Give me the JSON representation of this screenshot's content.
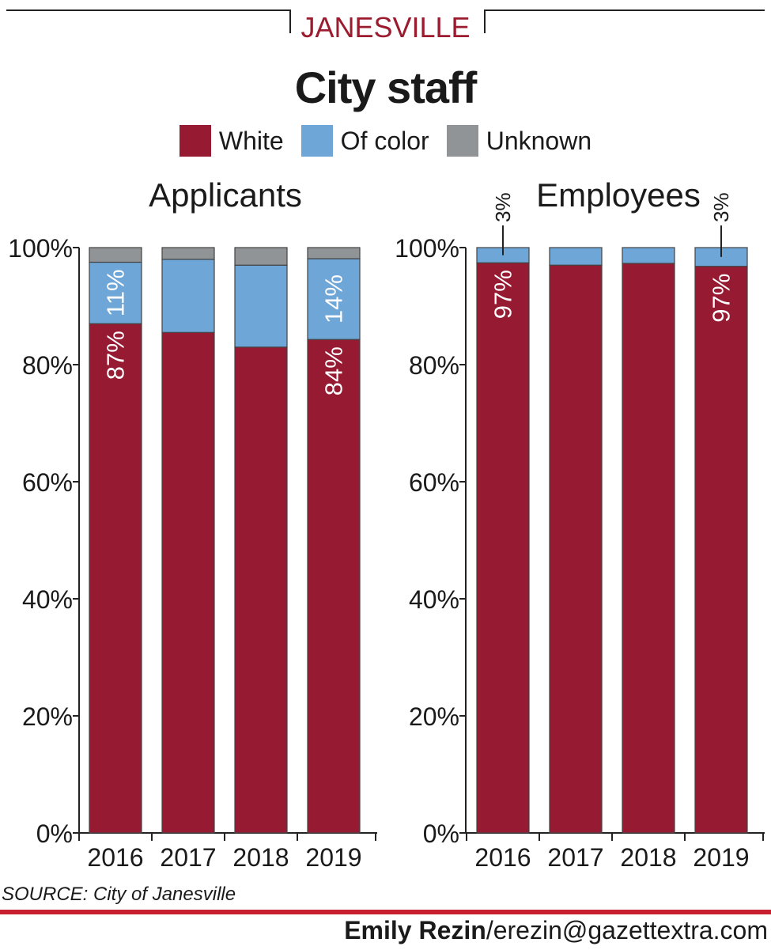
{
  "kicker": "JANESVILLE",
  "title": "City staff",
  "legend": [
    {
      "label": "White",
      "color": "#961a31"
    },
    {
      "label": "Of color",
      "color": "#6fa6d8"
    },
    {
      "label": "Unknown",
      "color": "#919496"
    }
  ],
  "source": "SOURCE: City of Janesville",
  "credit": {
    "name": "Emily Rezin",
    "email": "/erezin@gazettextra.com"
  },
  "colors": {
    "accent": "#c8202f",
    "white": "#961a31",
    "of_color": "#6fa6d8",
    "unknown": "#919496"
  },
  "chart_data": [
    {
      "type": "bar",
      "stacked": true,
      "title": "Applicants",
      "categories": [
        "2016",
        "2017",
        "2018",
        "2019"
      ],
      "ylim": [
        0,
        100
      ],
      "yticks": [
        "0%",
        "20%",
        "40%",
        "60%",
        "80%",
        "100%"
      ],
      "series": [
        {
          "name": "White",
          "values": [
            87,
            85.5,
            83,
            84.3
          ]
        },
        {
          "name": "Of color",
          "values": [
            10.5,
            12.5,
            14,
            13.8
          ]
        },
        {
          "name": "Unknown",
          "values": [
            2.5,
            2,
            3,
            1.9
          ]
        }
      ],
      "labels": [
        {
          "category": "2016",
          "series": "White",
          "text": "87%"
        },
        {
          "category": "2016",
          "series": "Of color",
          "text": "11%"
        },
        {
          "category": "2019",
          "series": "White",
          "text": "84%"
        },
        {
          "category": "2019",
          "series": "Of color",
          "text": "14%"
        }
      ]
    },
    {
      "type": "bar",
      "stacked": true,
      "title": "Employees",
      "categories": [
        "2016",
        "2017",
        "2018",
        "2019"
      ],
      "ylim": [
        0,
        100
      ],
      "yticks": [
        "0%",
        "20%",
        "40%",
        "60%",
        "80%",
        "100%"
      ],
      "series": [
        {
          "name": "White",
          "values": [
            97.4,
            97,
            97.3,
            96.8
          ]
        },
        {
          "name": "Of color",
          "values": [
            2.6,
            3,
            2.7,
            3.2
          ]
        },
        {
          "name": "Unknown",
          "values": [
            0,
            0,
            0,
            0
          ]
        }
      ],
      "labels": [
        {
          "category": "2016",
          "series": "White",
          "text": "97%"
        },
        {
          "category": "2016",
          "series": "Of color",
          "text": "3%",
          "callout": true
        },
        {
          "category": "2019",
          "series": "White",
          "text": "97%"
        },
        {
          "category": "2019",
          "series": "Of color",
          "text": "3%",
          "callout": true
        }
      ]
    }
  ]
}
